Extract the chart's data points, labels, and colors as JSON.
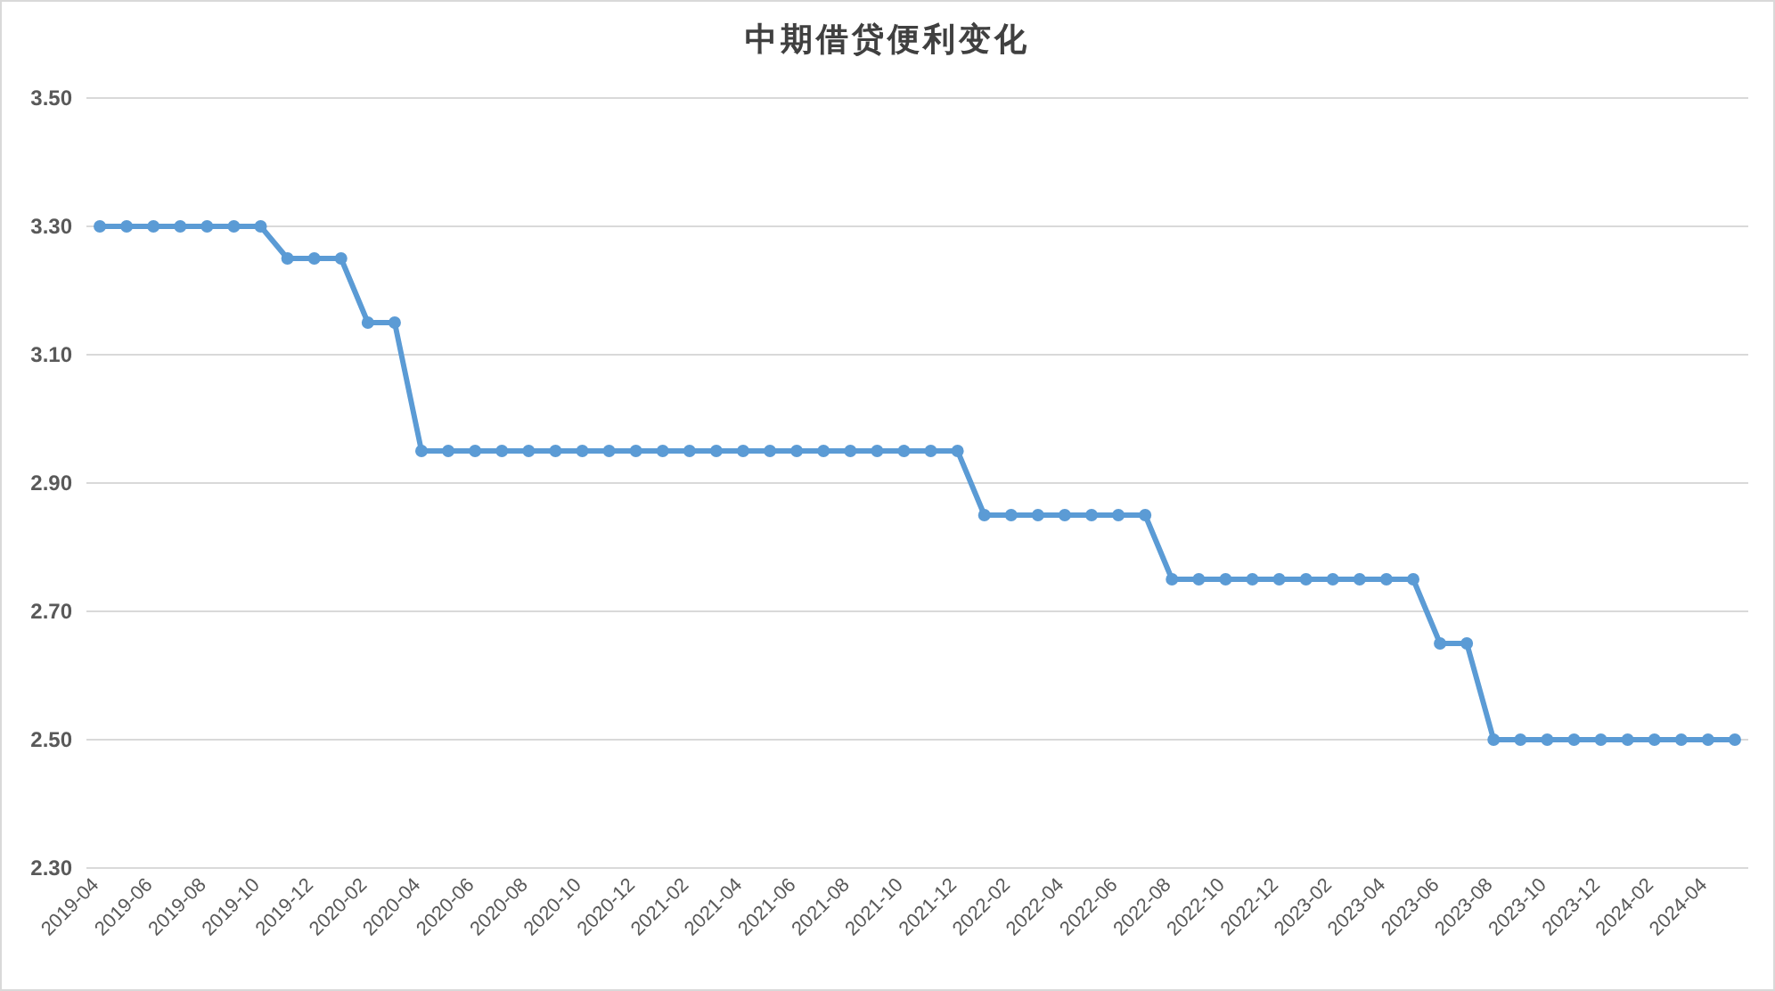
{
  "chart_data": {
    "type": "line",
    "title": "中期借贷便利变化",
    "categories": [
      "2019-04",
      null,
      "2019-06",
      null,
      "2019-08",
      null,
      "2019-10",
      null,
      "2019-12",
      null,
      "2020-02",
      null,
      "2020-04",
      null,
      "2020-06",
      null,
      "2020-08",
      null,
      "2020-10",
      null,
      "2020-12",
      null,
      "2021-02",
      null,
      "2021-04",
      null,
      "2021-06",
      null,
      "2021-08",
      null,
      "2021-10",
      null,
      "2021-12",
      null,
      "2022-02",
      null,
      "2022-04",
      null,
      "2022-06",
      null,
      "2022-08",
      null,
      "2022-10",
      null,
      "2022-12",
      null,
      "2023-02",
      null,
      "2023-04",
      null,
      "2023-06",
      null,
      "2023-08",
      null,
      "2023-10",
      null,
      "2023-12",
      null,
      "2024-02",
      null,
      "2024-04",
      null
    ],
    "series": [
      {
        "color": "#5b9bd5",
        "values": [
          3.3,
          3.3,
          3.3,
          3.3,
          3.3,
          3.3,
          3.3,
          3.25,
          3.25,
          3.25,
          3.15,
          3.15,
          2.95,
          2.95,
          2.95,
          2.95,
          2.95,
          2.95,
          2.95,
          2.95,
          2.95,
          2.95,
          2.95,
          2.95,
          2.95,
          2.95,
          2.95,
          2.95,
          2.95,
          2.95,
          2.95,
          2.95,
          2.95,
          2.85,
          2.85,
          2.85,
          2.85,
          2.85,
          2.85,
          2.85,
          2.75,
          2.75,
          2.75,
          2.75,
          2.75,
          2.75,
          2.75,
          2.75,
          2.75,
          2.75,
          2.65,
          2.65,
          2.5,
          2.5,
          2.5,
          2.5,
          2.5,
          2.5,
          2.5,
          2.5,
          2.5,
          2.5
        ]
      }
    ],
    "ylim": [
      2.3,
      3.5
    ],
    "yticks": [
      {
        "value": 2.3,
        "label": "2.30"
      },
      {
        "value": 2.5,
        "label": "2.50"
      },
      {
        "value": 2.7,
        "label": "2.70"
      },
      {
        "value": 2.9,
        "label": "2.90"
      },
      {
        "value": 3.1,
        "label": "3.10"
      },
      {
        "value": 3.3,
        "label": "3.30"
      },
      {
        "value": 3.5,
        "label": "3.50"
      }
    ],
    "grid": "y",
    "marker": "circle"
  }
}
